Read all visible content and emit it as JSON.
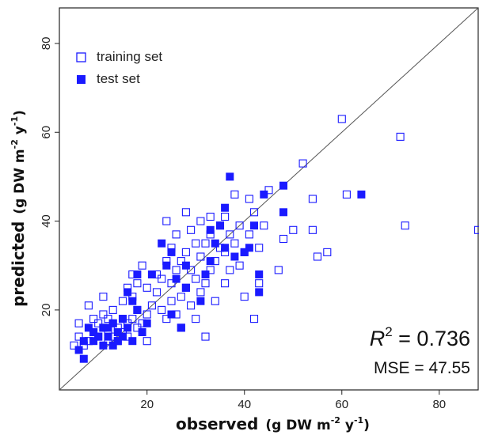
{
  "chart_data": {
    "type": "scatter",
    "title": "",
    "xlabel": {
      "main": "observed",
      "unit": "(g DW m",
      "sup1": "-2",
      "mid": " y",
      "sup2": "-1",
      "end": ")"
    },
    "ylabel": {
      "main": "predicted",
      "unit": "(g DW m",
      "sup1": "-2",
      "mid": " y",
      "sup2": "-1",
      "end": ")"
    },
    "xlim": [
      2,
      88
    ],
    "ylim": [
      2,
      88
    ],
    "xticks": [
      20,
      40,
      60,
      80
    ],
    "yticks": [
      20,
      40,
      60,
      80
    ],
    "grid": false,
    "reference_line": "y = x",
    "legend": {
      "placement": "top-left"
    },
    "colors": {
      "series": "#1a1aff",
      "line": "#555555"
    },
    "annotations": {
      "r2_symbol": "R",
      "r2_sup": "2",
      "r2_eq": " = 0.736",
      "mse": "MSE = 47.55"
    },
    "series": [
      {
        "name": "training set",
        "marker": "open-square",
        "points": [
          [
            5,
            12
          ],
          [
            6,
            14
          ],
          [
            6,
            17
          ],
          [
            7,
            12
          ],
          [
            8,
            21
          ],
          [
            8,
            13
          ],
          [
            9,
            15
          ],
          [
            9,
            18
          ],
          [
            10,
            14
          ],
          [
            10,
            17
          ],
          [
            11,
            16
          ],
          [
            11,
            19
          ],
          [
            11,
            23
          ],
          [
            12,
            13
          ],
          [
            12,
            15
          ],
          [
            12,
            18
          ],
          [
            13,
            14
          ],
          [
            13,
            17
          ],
          [
            13,
            20
          ],
          [
            14,
            16
          ],
          [
            14,
            13
          ],
          [
            15,
            18
          ],
          [
            15,
            15
          ],
          [
            15,
            22
          ],
          [
            16,
            17
          ],
          [
            16,
            25
          ],
          [
            16,
            14
          ],
          [
            17,
            18
          ],
          [
            17,
            23
          ],
          [
            17,
            28
          ],
          [
            18,
            16
          ],
          [
            18,
            20
          ],
          [
            18,
            26
          ],
          [
            19,
            17
          ],
          [
            19,
            30
          ],
          [
            20,
            13
          ],
          [
            20,
            19
          ],
          [
            20,
            25
          ],
          [
            21,
            21
          ],
          [
            22,
            24
          ],
          [
            22,
            28
          ],
          [
            23,
            20
          ],
          [
            23,
            27
          ],
          [
            24,
            18
          ],
          [
            24,
            31
          ],
          [
            24,
            40
          ],
          [
            25,
            22
          ],
          [
            25,
            26
          ],
          [
            25,
            34
          ],
          [
            26,
            19
          ],
          [
            26,
            29
          ],
          [
            26,
            37
          ],
          [
            27,
            23
          ],
          [
            27,
            31
          ],
          [
            27,
            16
          ],
          [
            28,
            25
          ],
          [
            28,
            33
          ],
          [
            28,
            42
          ],
          [
            29,
            21
          ],
          [
            29,
            29
          ],
          [
            29,
            38
          ],
          [
            30,
            27
          ],
          [
            30,
            35
          ],
          [
            30,
            18
          ],
          [
            31,
            24
          ],
          [
            31,
            32
          ],
          [
            31,
            40
          ],
          [
            32,
            26
          ],
          [
            32,
            35
          ],
          [
            32,
            14
          ],
          [
            33,
            29
          ],
          [
            33,
            37
          ],
          [
            33,
            41
          ],
          [
            34,
            31
          ],
          [
            34,
            22
          ],
          [
            35,
            34
          ],
          [
            35,
            39
          ],
          [
            36,
            26
          ],
          [
            36,
            33
          ],
          [
            36,
            41
          ],
          [
            37,
            29
          ],
          [
            37,
            37
          ],
          [
            38,
            35
          ],
          [
            38,
            46
          ],
          [
            39,
            30
          ],
          [
            39,
            39
          ],
          [
            40,
            23
          ],
          [
            40,
            33
          ],
          [
            41,
            37
          ],
          [
            41,
            45
          ],
          [
            42,
            18
          ],
          [
            42,
            42
          ],
          [
            43,
            34
          ],
          [
            43,
            26
          ],
          [
            44,
            39
          ],
          [
            45,
            47
          ],
          [
            47,
            29
          ],
          [
            48,
            36
          ],
          [
            50,
            38
          ],
          [
            52,
            53
          ],
          [
            54,
            45
          ],
          [
            54,
            38
          ],
          [
            55,
            32
          ],
          [
            57,
            33
          ],
          [
            60,
            63
          ],
          [
            61,
            46
          ],
          [
            72,
            59
          ],
          [
            73,
            39
          ],
          [
            88,
            38
          ]
        ]
      },
      {
        "name": "test set",
        "marker": "filled-square",
        "points": [
          [
            6,
            11
          ],
          [
            7,
            9
          ],
          [
            7,
            13
          ],
          [
            8,
            16
          ],
          [
            9,
            13
          ],
          [
            9,
            15
          ],
          [
            10,
            14
          ],
          [
            11,
            16
          ],
          [
            11,
            12
          ],
          [
            12,
            14
          ],
          [
            12,
            16
          ],
          [
            13,
            12
          ],
          [
            13,
            17
          ],
          [
            14,
            15
          ],
          [
            14,
            13
          ],
          [
            15,
            18
          ],
          [
            15,
            14
          ],
          [
            16,
            16
          ],
          [
            16,
            24
          ],
          [
            17,
            22
          ],
          [
            17,
            13
          ],
          [
            18,
            20
          ],
          [
            18,
            28
          ],
          [
            19,
            15
          ],
          [
            20,
            17
          ],
          [
            21,
            28
          ],
          [
            23,
            35
          ],
          [
            24,
            30
          ],
          [
            25,
            33
          ],
          [
            25,
            19
          ],
          [
            26,
            27
          ],
          [
            27,
            16
          ],
          [
            28,
            25
          ],
          [
            28,
            30
          ],
          [
            31,
            22
          ],
          [
            32,
            28
          ],
          [
            33,
            31
          ],
          [
            33,
            38
          ],
          [
            34,
            35
          ],
          [
            35,
            39
          ],
          [
            36,
            34
          ],
          [
            36,
            43
          ],
          [
            37,
            50
          ],
          [
            38,
            32
          ],
          [
            40,
            33
          ],
          [
            41,
            34
          ],
          [
            42,
            39
          ],
          [
            43,
            24
          ],
          [
            43,
            28
          ],
          [
            44,
            46
          ],
          [
            48,
            48
          ],
          [
            48,
            42
          ],
          [
            64,
            46
          ]
        ]
      }
    ]
  }
}
